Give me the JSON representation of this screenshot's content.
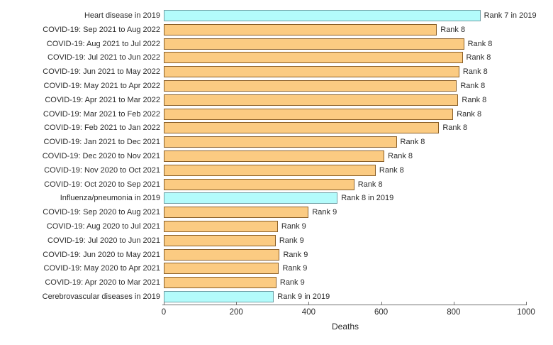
{
  "chart_data": {
    "type": "bar",
    "orientation": "horizontal",
    "title": "",
    "xlabel": "Deaths",
    "ylabel": "",
    "xlim": [
      0,
      1000
    ],
    "xticks": [
      0,
      200,
      400,
      600,
      800,
      1000
    ],
    "grid": false,
    "legend": "none",
    "bars": [
      {
        "label": "Heart disease in 2019",
        "value": 870,
        "rank_label": "Rank 7 in 2019",
        "group": "reference2019"
      },
      {
        "label": "COVID-19: Sep 2021 to Aug 2022",
        "value": 750,
        "rank_label": "Rank 8",
        "group": "covid"
      },
      {
        "label": "COVID-19: Aug 2021 to Jul 2022",
        "value": 825,
        "rank_label": "Rank 8",
        "group": "covid"
      },
      {
        "label": "COVID-19: Jul 2021 to Jun 2022",
        "value": 821,
        "rank_label": "Rank 8",
        "group": "covid"
      },
      {
        "label": "COVID-19: Jun 2021 to May 2022",
        "value": 812,
        "rank_label": "Rank 8",
        "group": "covid"
      },
      {
        "label": "COVID-19: May 2021 to Apr 2022",
        "value": 805,
        "rank_label": "Rank 8",
        "group": "covid"
      },
      {
        "label": "COVID-19: Apr 2021 to Mar 2022",
        "value": 809,
        "rank_label": "Rank 8",
        "group": "covid"
      },
      {
        "label": "COVID-19: Mar 2021 to Feb 2022",
        "value": 795,
        "rank_label": "Rank 8",
        "group": "covid"
      },
      {
        "label": "COVID-19: Feb 2021 to Jan 2022",
        "value": 756,
        "rank_label": "Rank 8",
        "group": "covid"
      },
      {
        "label": "COVID-19: Jan 2021 to Dec 2021",
        "value": 639,
        "rank_label": "Rank 8",
        "group": "covid"
      },
      {
        "label": "COVID-19: Dec 2020 to Nov 2021",
        "value": 605,
        "rank_label": "Rank 8",
        "group": "covid"
      },
      {
        "label": "COVID-19: Nov 2020 to Oct 2021",
        "value": 581,
        "rank_label": "Rank 8",
        "group": "covid"
      },
      {
        "label": "COVID-19: Oct 2020 to Sep 2021",
        "value": 522,
        "rank_label": "Rank 8",
        "group": "covid"
      },
      {
        "label": "Influenza/pneumonia in 2019",
        "value": 476,
        "rank_label": "Rank 8 in 2019",
        "group": "reference2019"
      },
      {
        "label": "COVID-19: Sep 2020 to Aug 2021",
        "value": 396,
        "rank_label": "Rank 9",
        "group": "covid"
      },
      {
        "label": "COVID-19: Aug 2020 to Jul 2021",
        "value": 311,
        "rank_label": "Rank 9",
        "group": "covid"
      },
      {
        "label": "COVID-19: Jul 2020 to Jun 2021",
        "value": 305,
        "rank_label": "Rank 9",
        "group": "covid"
      },
      {
        "label": "COVID-19: Jun 2020 to May 2021",
        "value": 316,
        "rank_label": "Rank 9",
        "group": "covid"
      },
      {
        "label": "COVID-19: May 2020 to Apr 2021",
        "value": 314,
        "rank_label": "Rank 9",
        "group": "covid"
      },
      {
        "label": "COVID-19: Apr 2020 to Mar 2021",
        "value": 307,
        "rank_label": "Rank 9",
        "group": "covid"
      },
      {
        "label": "Cerebrovascular diseases in 2019",
        "value": 300,
        "rank_label": "Rank 9 in 2019",
        "group": "reference2019"
      }
    ],
    "colors": {
      "covid_fill": "#FBCB82",
      "covid_border": "#8A5F28",
      "reference2019_fill": "#B3FBFB",
      "reference2019_border": "#6E9FA5",
      "axis": "#707070",
      "text": "#2b2b2b"
    }
  }
}
